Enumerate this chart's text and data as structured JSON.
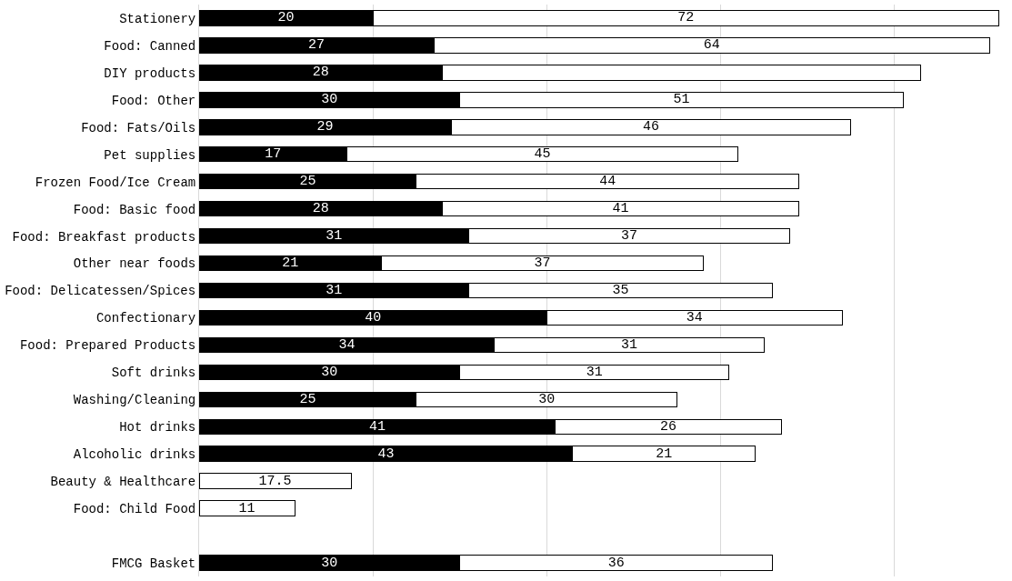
{
  "chart_data": {
    "type": "bar",
    "orientation": "horizontal",
    "stacked": true,
    "categories": [
      "Stationery",
      "Food: Canned",
      "DIY products",
      "Food: Other",
      "Food: Fats/Oils",
      "Pet supplies",
      "Frozen Food/Ice Cream",
      "Food: Basic food",
      "Food: Breakfast products",
      "Other near foods",
      "Food: Delicatessen/Spices",
      "Confectionary",
      "Food: Prepared Products",
      "Soft drinks",
      "Washing/Cleaning",
      "Hot drinks",
      "Alcoholic drinks",
      "Beauty & Healthcare",
      "Food: Child Food",
      null,
      "FMCG Basket"
    ],
    "series": [
      {
        "color": "#000000",
        "values": [
          20,
          27,
          28,
          30,
          29,
          17,
          25,
          28,
          31,
          21,
          31,
          40,
          34,
          30,
          25,
          41,
          43,
          null,
          null,
          null,
          30
        ],
        "value_labels": [
          "20",
          "27",
          "28",
          "30",
          "29",
          "17",
          "25",
          "28",
          "31",
          "21",
          "31",
          "40",
          "34",
          "30",
          "25",
          "41",
          "43",
          null,
          null,
          null,
          "30"
        ]
      },
      {
        "color": "#ffffff",
        "values": [
          72,
          64,
          55,
          51,
          46,
          45,
          44,
          41,
          37,
          37,
          35,
          34,
          31,
          31,
          30,
          26,
          21,
          17.5,
          11,
          null,
          36
        ],
        "value_labels": [
          "72",
          "64",
          null,
          "51",
          "46",
          "45",
          "44",
          "41",
          "37",
          "37",
          "35",
          "34",
          "31",
          "31",
          "30",
          "26",
          "21",
          "17.5",
          "11",
          null,
          "36"
        ]
      }
    ],
    "xlim": [
      0,
      92.5
    ],
    "xticks": [
      {
        "value": 0,
        "label": null
      },
      {
        "value": 20,
        "label": null
      },
      {
        "value": 40,
        "label": null
      },
      {
        "value": 60,
        "label": null
      },
      {
        "value": 80,
        "label": null
      }
    ],
    "grid": "x",
    "tick_labels": "y"
  }
}
